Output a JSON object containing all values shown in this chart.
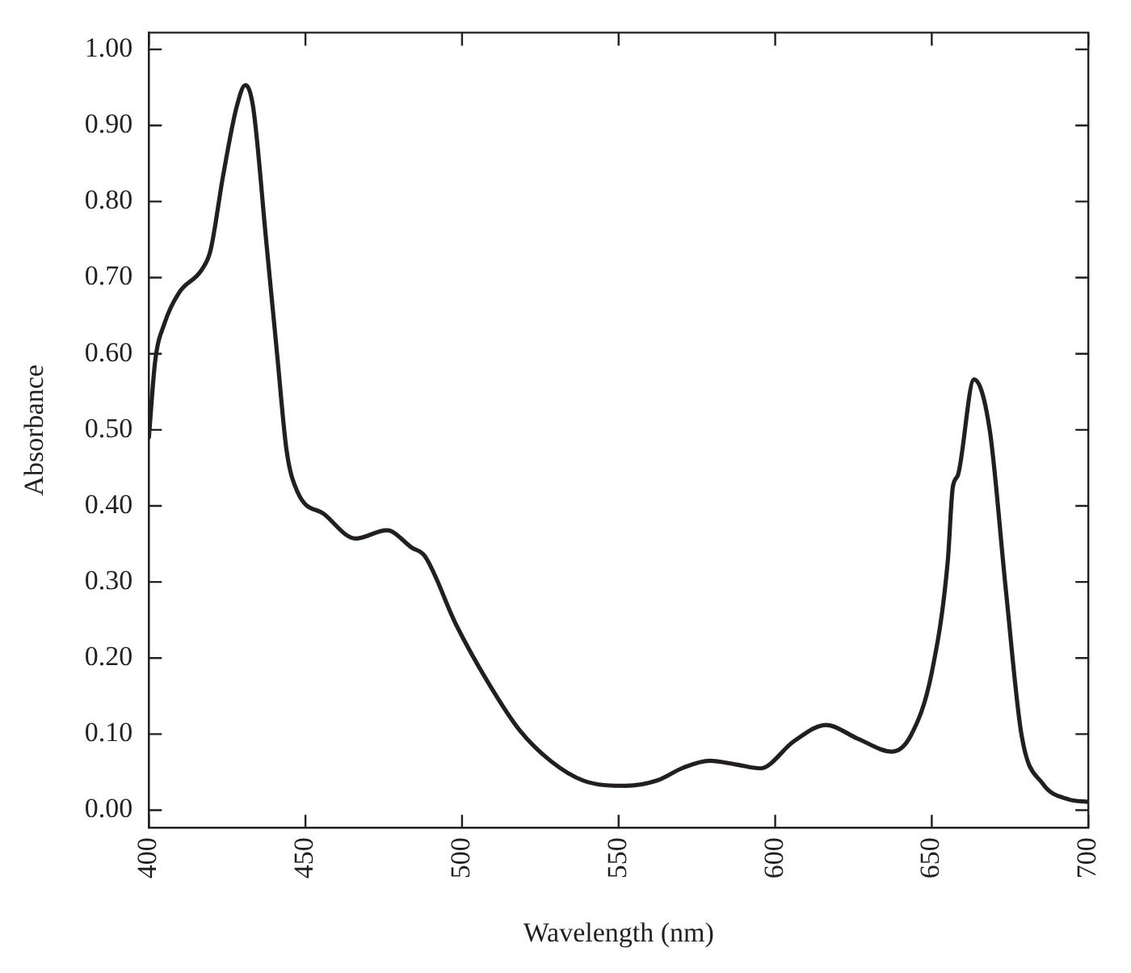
{
  "chart_data": {
    "type": "line",
    "xlabel": "Wavelength (nm)",
    "ylabel": "Absorbance",
    "xlim": [
      400,
      700
    ],
    "xticks": [
      400,
      450,
      500,
      550,
      600,
      650,
      700
    ],
    "ylim": [
      -0.023,
      1.022
    ],
    "yticks": [
      {
        "value": 0,
        "label": "0.00"
      },
      {
        "value": 0.1,
        "label": "0.10"
      },
      {
        "value": 0.2,
        "label": "0.20"
      },
      {
        "value": 0.3,
        "label": "0.30"
      },
      {
        "value": 0.4,
        "label": "0.40"
      },
      {
        "value": 0.5,
        "label": "0.50"
      },
      {
        "value": 0.6,
        "label": "0.60"
      },
      {
        "value": 0.7,
        "label": "0.70"
      },
      {
        "value": 0.8,
        "label": "0.80"
      },
      {
        "value": 0.9,
        "label": "0.90"
      },
      {
        "value": 1,
        "label": "1.00"
      }
    ],
    "grid": false,
    "legend": false,
    "marker": "none",
    "line_style": "solid",
    "series": [
      {
        "color": "#231f20",
        "x": [
          400,
          402,
          405,
          409.6,
          417,
          419.7,
          423.7,
          428,
          430.8,
          433.3,
          437.4,
          441,
          444,
          447.5,
          456,
          466,
          476,
          484,
          488.1,
          498.2,
          508.3,
          518.4,
          528.5,
          538.7,
          552.2,
          562.3,
          570.7,
          579.1,
          587.6,
          595.2,
          606.1,
          616.2,
          626.4,
          637.3,
          643.3,
          650,
          655.1,
          656.7,
          658.4,
          663.5,
          668.5,
          673.6,
          678.7,
          685.4,
          693.9,
          699.8
        ],
        "values": [
          0.49,
          0.59,
          0.64,
          0.68,
          0.711,
          0.736,
          0.834,
          0.924,
          0.953,
          0.924,
          0.751,
          0.597,
          0.472,
          0.418,
          0.389,
          0.357,
          0.368,
          0.345,
          0.334,
          0.243,
          0.168,
          0.105,
          0.064,
          0.039,
          0.032,
          0.039,
          0.056,
          0.065,
          0.06,
          0.055,
          0.091,
          0.112,
          0.094,
          0.077,
          0.098,
          0.181,
          0.327,
          0.424,
          0.441,
          0.566,
          0.5,
          0.292,
          0.098,
          0.035,
          0.014,
          0.011
        ]
      }
    ]
  }
}
